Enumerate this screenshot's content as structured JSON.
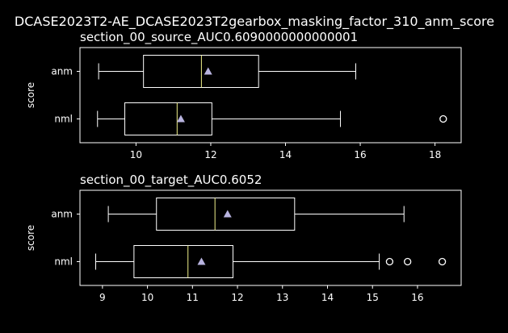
{
  "chart_data": {
    "type": "boxplot",
    "suptitle": "DCASE2023T2-AE_DCASE2023T2gearbox_masking_factor_310_anm_score",
    "colors": {
      "background": "#000000",
      "foreground": "#ffffff",
      "median": "#f0f08a",
      "mean_marker": "#b9b4e0"
    },
    "panels": [
      {
        "title": "section_00_source_AUC0.6090000000000001",
        "ylabel": "score",
        "xlim": [
          8.5,
          18.7
        ],
        "xticks": [
          10,
          12,
          14,
          16,
          18
        ],
        "categories": [
          "anm",
          "nml"
        ],
        "boxes": [
          {
            "label": "anm",
            "whislo": 9.0,
            "q1": 10.2,
            "median": 11.75,
            "q3": 13.28,
            "whishi": 15.88,
            "mean": 11.93,
            "fliers": []
          },
          {
            "label": "nml",
            "whislo": 8.97,
            "q1": 9.7,
            "median": 11.1,
            "q3": 12.03,
            "whishi": 15.47,
            "mean": 11.2,
            "fliers": [
              18.22
            ]
          }
        ]
      },
      {
        "title": "section_00_target_AUC0.6052",
        "ylabel": "score",
        "xlim": [
          8.5,
          16.97
        ],
        "xticks": [
          9,
          10,
          11,
          12,
          13,
          14,
          15,
          16
        ],
        "categories": [
          "anm",
          "nml"
        ],
        "boxes": [
          {
            "label": "anm",
            "whislo": 9.13,
            "q1": 10.2,
            "median": 11.5,
            "q3": 13.27,
            "whishi": 15.7,
            "mean": 11.78,
            "fliers": []
          },
          {
            "label": "nml",
            "whislo": 8.85,
            "q1": 9.7,
            "median": 10.9,
            "q3": 11.9,
            "whishi": 15.15,
            "mean": 11.2,
            "fliers": [
              15.38,
              15.78,
              16.55
            ]
          }
        ]
      }
    ]
  }
}
